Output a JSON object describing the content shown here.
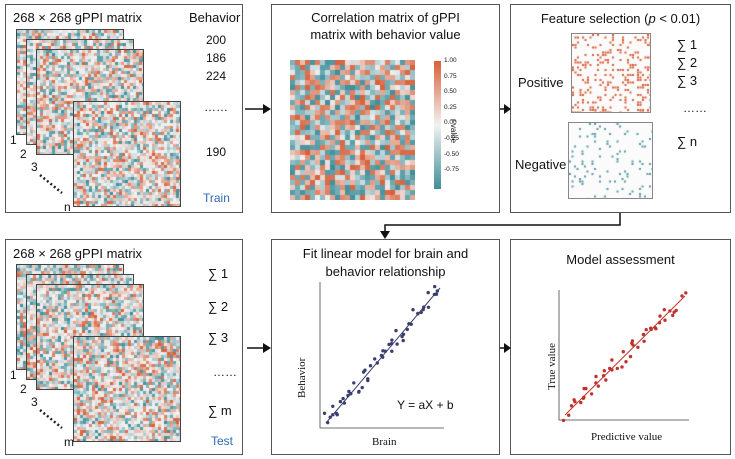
{
  "train_panel": {
    "title": "268 × 268 gPPI matrix",
    "behavior_header": "Behavior",
    "behavior_values": [
      "200",
      "186",
      "224",
      "……",
      "190"
    ],
    "layer_labels": [
      "1",
      "2",
      "3",
      "n"
    ],
    "footer": "Train"
  },
  "correlation_panel": {
    "title_line1": "Correlation matrix of gPPI",
    "title_line2": "matrix with behavior value",
    "colorbar_ticks": [
      "1.00",
      "0.75",
      "0.50",
      "0.25",
      "0.00",
      "-0.25",
      "-0.50",
      "-0.75"
    ],
    "colorbar_label": "r value",
    "colors": {
      "positive": "#d8603a",
      "neutral": "#f2f2f2",
      "negative": "#3e8e9a"
    }
  },
  "feature_panel": {
    "title_prefix": "Feature selection (",
    "title_italic": "p",
    "title_suffix": " < 0.01)",
    "positive_label": "Positive",
    "negative_label": "Negative",
    "sums": [
      "∑ 1",
      "∑ 2",
      "∑ 3",
      "……",
      "∑ n"
    ],
    "colors": {
      "positive": "#d8603a",
      "negative": "#5a9aa6"
    }
  },
  "test_panel": {
    "title": "268 × 268 gPPI matrix",
    "sums": [
      "∑ 1",
      "∑ 2",
      "∑ 3",
      "……",
      "∑ m"
    ],
    "layer_labels": [
      "1",
      "2",
      "3",
      "m"
    ],
    "footer": "Test"
  },
  "linear_panel": {
    "title_line1": "Fit linear model for brain and",
    "title_line2": "behavior relationship",
    "xlabel": "Brain",
    "ylabel": "Behavior",
    "equation": "Y = aX + b",
    "color": "#3a3f6e"
  },
  "assessment_panel": {
    "title": "Model assessment",
    "xlabel": "Predictive value",
    "ylabel": "True value",
    "color": "#c0322c"
  }
}
